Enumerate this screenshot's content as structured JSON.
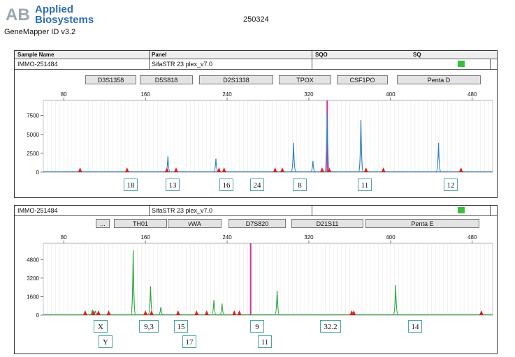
{
  "header": {
    "company": "Applied Biosystems",
    "company_line1": "Applied",
    "company_line2": "Biosystems",
    "logo_letters": "AB",
    "software": "GeneMapper ID v3.2",
    "run_id": "250324"
  },
  "table_header": {
    "sample_name": "Sample Name",
    "panel": "Panel",
    "sqo": "SQO",
    "sq": "SQ"
  },
  "panels": [
    {
      "sample": "IMMO-251484",
      "panel_name": "SifaSTR 23 plex_v7.0",
      "markers": [
        "D3S1358",
        "D5S818",
        "D2S1338",
        "TPOX",
        "CSF1PO",
        "Penta D"
      ],
      "alleles": [
        "18",
        "13",
        "16",
        "24",
        "8",
        "11",
        "12"
      ]
    },
    {
      "sample": "IMMO-251484",
      "panel_name": "SifaSTR 23 plex_v7.0",
      "markers": [
        "...",
        "TH01",
        "vWA",
        "D7S820",
        "D21S11",
        "Penta E"
      ],
      "alleles_top": [
        "X",
        "9,3",
        "15",
        "9",
        "32.2",
        "14"
      ],
      "alleles_bottom": [
        "Y",
        "17",
        "11"
      ]
    }
  ],
  "chart_data": [
    {
      "type": "line",
      "title": "",
      "xlabel": "",
      "ylabel": "",
      "x_ticks": [
        80,
        160,
        240,
        320,
        400,
        480
      ],
      "y_ticks": [
        0,
        2500,
        5000,
        7500
      ],
      "xlim": [
        60,
        500
      ],
      "ylim": [
        0,
        9500
      ],
      "color": "#2b7fc0",
      "series": [
        {
          "peaks": [
            {
              "x": 182,
              "y": 2100
            },
            {
              "x": 229,
              "y": 1800
            },
            {
              "x": 305,
              "y": 3900
            },
            {
              "x": 324,
              "y": 1500
            },
            {
              "x": 338,
              "y": 7800
            },
            {
              "x": 371,
              "y": 6900
            },
            {
              "x": 447,
              "y": 3900
            }
          ]
        }
      ],
      "markers_red_x": [
        96,
        142,
        181,
        190,
        232,
        237,
        287,
        294,
        333,
        340,
        376,
        393,
        469
      ],
      "highlight_x": 338
    },
    {
      "type": "line",
      "title": "",
      "xlabel": "",
      "ylabel": "",
      "x_ticks": [
        80,
        160,
        240,
        320,
        400,
        480
      ],
      "y_ticks": [
        0,
        1600,
        3200,
        4800
      ],
      "xlim": [
        60,
        500
      ],
      "ylim": [
        0,
        6200
      ],
      "color": "#2aa83a",
      "series": [
        {
          "peaks": [
            {
              "x": 108,
              "y": 450
            },
            {
              "x": 111,
              "y": 380
            },
            {
              "x": 148,
              "y": 5600
            },
            {
              "x": 165,
              "y": 2500
            },
            {
              "x": 175,
              "y": 700
            },
            {
              "x": 227,
              "y": 1300
            },
            {
              "x": 235,
              "y": 1000
            },
            {
              "x": 289,
              "y": 2100
            },
            {
              "x": 405,
              "y": 2600
            }
          ]
        }
      ],
      "markers_red_x": [
        101,
        109,
        114,
        124,
        160,
        166,
        192,
        210,
        220,
        247,
        252,
        362,
        364,
        489
      ],
      "highlight_x": 263
    }
  ]
}
